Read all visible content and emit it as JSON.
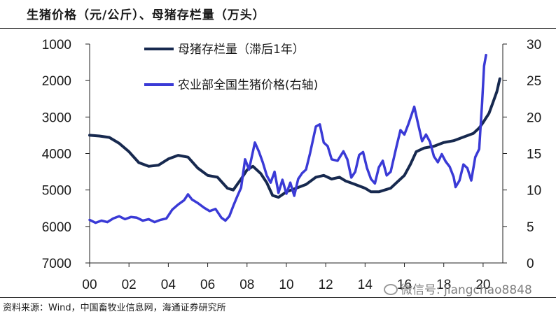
{
  "title": "生猪价格（元/公斤）、母猪存栏量（万头）",
  "source": "资料来源：Wind，中国畜牧业信息网，海通证券研究所",
  "watermark": "微信号: jiangchao8848",
  "colors": {
    "sow": "#17294f",
    "price": "#3a3ad6"
  },
  "chart_data": {
    "type": "line",
    "x_ticks": [
      "00",
      "02",
      "04",
      "06",
      "08",
      "10",
      "12",
      "14",
      "16",
      "18",
      "20"
    ],
    "x_range": [
      2000,
      2021
    ],
    "y_left": {
      "ticks": [
        "1000",
        "2000",
        "3000",
        "4000",
        "5000",
        "6000",
        "7000"
      ],
      "range": [
        1000,
        7000
      ],
      "inverted": true
    },
    "y_right": {
      "ticks": [
        "30",
        "25",
        "20",
        "15",
        "10",
        "5",
        "0"
      ],
      "range": [
        0,
        30
      ]
    },
    "grid": false,
    "legend_position": "top-center",
    "series": [
      {
        "name": "母猪存栏量（滞后1年）",
        "axis": "left",
        "color": "#17294f",
        "points": [
          [
            2000.0,
            3500
          ],
          [
            2000.5,
            3520
          ],
          [
            2001.0,
            3560
          ],
          [
            2001.5,
            3720
          ],
          [
            2002.0,
            3950
          ],
          [
            2002.5,
            4250
          ],
          [
            2003.0,
            4350
          ],
          [
            2003.5,
            4320
          ],
          [
            2004.0,
            4150
          ],
          [
            2004.5,
            4050
          ],
          [
            2005.0,
            4100
          ],
          [
            2005.5,
            4400
          ],
          [
            2006.0,
            4600
          ],
          [
            2006.5,
            4650
          ],
          [
            2007.0,
            4950
          ],
          [
            2007.3,
            5000
          ],
          [
            2007.7,
            4700
          ],
          [
            2008.0,
            4450
          ],
          [
            2008.3,
            4350
          ],
          [
            2008.7,
            4550
          ],
          [
            2009.0,
            4800
          ],
          [
            2009.3,
            5150
          ],
          [
            2009.6,
            5200
          ],
          [
            2010.0,
            5050
          ],
          [
            2010.5,
            4950
          ],
          [
            2011.0,
            4850
          ],
          [
            2011.5,
            4650
          ],
          [
            2011.9,
            4600
          ],
          [
            2012.3,
            4700
          ],
          [
            2012.7,
            4650
          ],
          [
            2013.0,
            4750
          ],
          [
            2013.5,
            4850
          ],
          [
            2014.0,
            4950
          ],
          [
            2014.3,
            5050
          ],
          [
            2014.7,
            5050
          ],
          [
            2015.0,
            5000
          ],
          [
            2015.3,
            4950
          ],
          [
            2015.6,
            4800
          ],
          [
            2016.0,
            4600
          ],
          [
            2016.3,
            4300
          ],
          [
            2016.6,
            3950
          ],
          [
            2017.0,
            3850
          ],
          [
            2017.5,
            3800
          ],
          [
            2018.0,
            3700
          ],
          [
            2018.5,
            3650
          ],
          [
            2019.0,
            3550
          ],
          [
            2019.5,
            3450
          ],
          [
            2019.8,
            3300
          ],
          [
            2020.0,
            3150
          ],
          [
            2020.3,
            2900
          ],
          [
            2020.5,
            2600
          ],
          [
            2020.7,
            2300
          ],
          [
            2020.85,
            1950
          ]
        ]
      },
      {
        "name": "农业部全国生猪价格(右轴)",
        "axis": "right",
        "color": "#3a3ad6",
        "points": [
          [
            2000.0,
            5.9
          ],
          [
            2000.3,
            5.5
          ],
          [
            2000.6,
            5.8
          ],
          [
            2000.9,
            5.6
          ],
          [
            2001.2,
            6.1
          ],
          [
            2001.5,
            6.4
          ],
          [
            2001.8,
            6.0
          ],
          [
            2002.1,
            6.3
          ],
          [
            2002.4,
            6.2
          ],
          [
            2002.7,
            5.8
          ],
          [
            2003.0,
            6.0
          ],
          [
            2003.3,
            5.6
          ],
          [
            2003.6,
            5.9
          ],
          [
            2003.9,
            6.1
          ],
          [
            2004.2,
            7.3
          ],
          [
            2004.5,
            8.0
          ],
          [
            2004.8,
            8.6
          ],
          [
            2005.0,
            9.4
          ],
          [
            2005.2,
            8.7
          ],
          [
            2005.5,
            8.2
          ],
          [
            2005.8,
            7.6
          ],
          [
            2006.1,
            7.1
          ],
          [
            2006.4,
            7.4
          ],
          [
            2006.7,
            6.2
          ],
          [
            2006.9,
            5.8
          ],
          [
            2007.1,
            6.4
          ],
          [
            2007.3,
            7.8
          ],
          [
            2007.5,
            9.1
          ],
          [
            2007.7,
            10.3
          ],
          [
            2007.9,
            14.2
          ],
          [
            2008.1,
            12.8
          ],
          [
            2008.4,
            16.5
          ],
          [
            2008.6,
            15.3
          ],
          [
            2008.8,
            13.8
          ],
          [
            2009.0,
            12.0
          ],
          [
            2009.2,
            11.0
          ],
          [
            2009.4,
            12.5
          ],
          [
            2009.6,
            9.6
          ],
          [
            2009.8,
            11.4
          ],
          [
            2010.0,
            9.5
          ],
          [
            2010.2,
            11.0
          ],
          [
            2010.4,
            9.2
          ],
          [
            2010.6,
            11.5
          ],
          [
            2010.8,
            12.3
          ],
          [
            2011.0,
            12.8
          ],
          [
            2011.2,
            15.0
          ],
          [
            2011.5,
            18.7
          ],
          [
            2011.7,
            19.0
          ],
          [
            2011.9,
            16.5
          ],
          [
            2012.1,
            16.0
          ],
          [
            2012.3,
            14.2
          ],
          [
            2012.6,
            14.0
          ],
          [
            2012.9,
            15.3
          ],
          [
            2013.1,
            14.2
          ],
          [
            2013.3,
            11.7
          ],
          [
            2013.5,
            12.5
          ],
          [
            2013.7,
            14.8
          ],
          [
            2013.9,
            15.2
          ],
          [
            2014.1,
            13.0
          ],
          [
            2014.3,
            11.5
          ],
          [
            2014.5,
            10.9
          ],
          [
            2014.7,
            13.1
          ],
          [
            2014.9,
            14.0
          ],
          [
            2015.1,
            12.0
          ],
          [
            2015.3,
            12.5
          ],
          [
            2015.6,
            16.0
          ],
          [
            2015.8,
            18.2
          ],
          [
            2016.0,
            17.6
          ],
          [
            2016.2,
            19.0
          ],
          [
            2016.5,
            21.4
          ],
          [
            2016.7,
            19.0
          ],
          [
            2016.9,
            16.7
          ],
          [
            2017.1,
            17.6
          ],
          [
            2017.3,
            16.6
          ],
          [
            2017.5,
            14.6
          ],
          [
            2017.7,
            13.8
          ],
          [
            2017.9,
            14.9
          ],
          [
            2018.1,
            13.9
          ],
          [
            2018.3,
            13.2
          ],
          [
            2018.5,
            11.8
          ],
          [
            2018.6,
            10.4
          ],
          [
            2018.8,
            11.3
          ],
          [
            2019.0,
            13.5
          ],
          [
            2019.2,
            13.0
          ],
          [
            2019.4,
            11.3
          ],
          [
            2019.6,
            14.5
          ],
          [
            2019.8,
            15.6
          ],
          [
            2019.95,
            22.0
          ],
          [
            2020.05,
            27.0
          ],
          [
            2020.15,
            28.5
          ]
        ]
      }
    ]
  }
}
